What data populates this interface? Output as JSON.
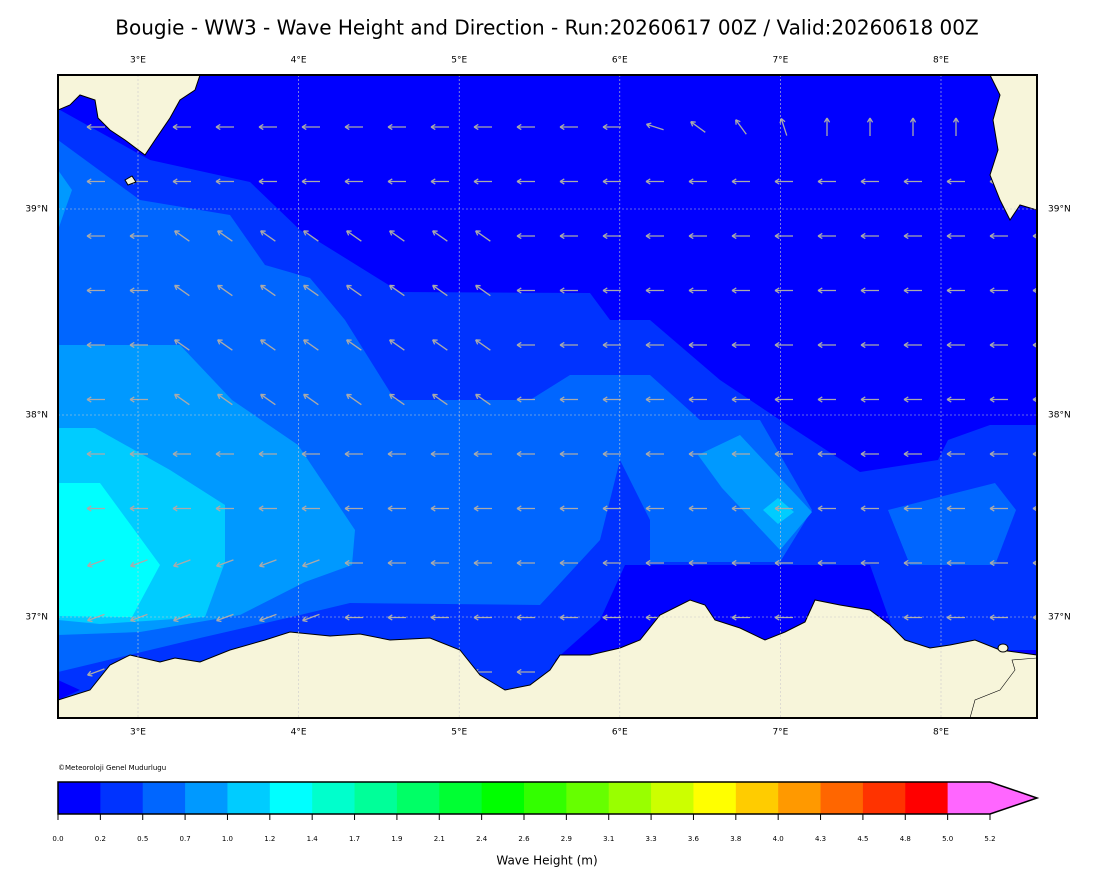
{
  "title": "Bougie - WW3 - Wave Height and Direction - Run:20260617 00Z / Valid:20260618 00Z",
  "map": {
    "lon_labels": [
      "3°E",
      "4°E",
      "5°E",
      "6°E",
      "7°E",
      "8°E"
    ],
    "lat_labels": [
      "39°N",
      "38°N",
      "37°N"
    ]
  },
  "credit": "©Meteoroloji Genel Mudurlugu",
  "colorbar": {
    "label": "Wave Height (m)",
    "ticks": [
      "0.0",
      "0.2",
      "0.5",
      "0.7",
      "1.0",
      "1.2",
      "1.4",
      "1.7",
      "1.9",
      "2.1",
      "2.4",
      "2.6",
      "2.9",
      "3.1",
      "3.3",
      "3.6",
      "3.8",
      "4.0",
      "4.3",
      "4.5",
      "4.8",
      "5.0",
      "5.2"
    ],
    "colors": [
      "#0000ff",
      "#0033ff",
      "#0066ff",
      "#0099ff",
      "#00ccff",
      "#00ffff",
      "#00ffcc",
      "#00ff99",
      "#00ff66",
      "#00ff33",
      "#00ff00",
      "#33ff00",
      "#66ff00",
      "#99ff00",
      "#ccff00",
      "#ffff00",
      "#ffcc00",
      "#ff9900",
      "#ff6600",
      "#ff3300",
      "#ff0000",
      "#ff66ff"
    ]
  }
}
